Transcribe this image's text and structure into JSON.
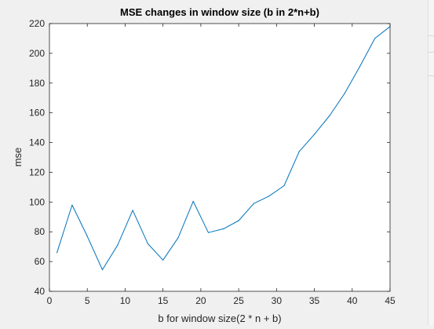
{
  "window": {
    "background": "#f0f0f0"
  },
  "chart_data": {
    "type": "line",
    "title": "MSE changes in window size (b in 2*n+b)",
    "xlabel": "b for window size(2 * n + b)",
    "ylabel": "mse",
    "xlim": [
      0,
      45
    ],
    "ylim": [
      40,
      220
    ],
    "xticks": [
      0,
      5,
      10,
      15,
      20,
      25,
      30,
      35,
      40,
      45
    ],
    "yticks": [
      40,
      60,
      80,
      100,
      120,
      140,
      160,
      180,
      200,
      220
    ],
    "grid": false,
    "line_color": "#0072bd",
    "series": [
      {
        "x": [
          1,
          3,
          5,
          7,
          9,
          11,
          13,
          15,
          17,
          19,
          21,
          23,
          25,
          27,
          29,
          31,
          33,
          35,
          37,
          39,
          41,
          43,
          45
        ],
        "y": [
          66,
          98,
          77,
          54.5,
          71,
          94.5,
          72,
          61,
          76,
          100.5,
          79.5,
          82,
          87.5,
          99,
          104,
          111,
          134,
          145.5,
          158,
          173,
          191,
          210,
          218
        ]
      }
    ]
  }
}
